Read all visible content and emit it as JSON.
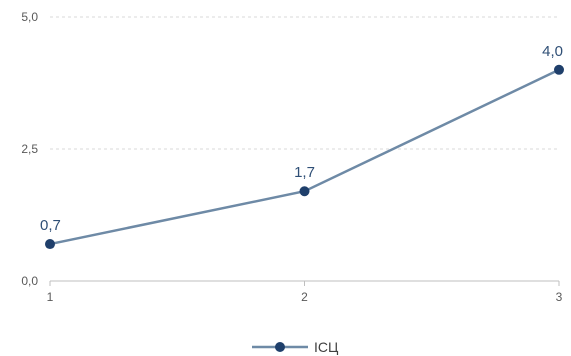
{
  "chart_data": {
    "type": "line",
    "title": "",
    "xlabel": "",
    "ylabel": "",
    "x": [
      "1",
      "2",
      "3"
    ],
    "x_tick_labels": [
      "1",
      "2",
      "3"
    ],
    "y_tick_labels": [
      "0,0",
      "2,5",
      "5,0"
    ],
    "y_ticks": [
      0,
      2.5,
      5.0
    ],
    "ylim": [
      0,
      5.0
    ],
    "grid": true,
    "legend_position": "bottom",
    "series": [
      {
        "name": "ІСЦ",
        "values": [
          0.7,
          1.7,
          4.0
        ],
        "data_labels": [
          "0,7",
          "1,7",
          "4,0"
        ],
        "line_color": "#6e8aa6",
        "marker_color": "#1f3f6b"
      }
    ]
  }
}
